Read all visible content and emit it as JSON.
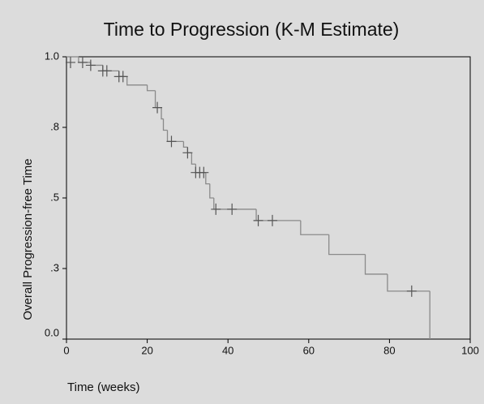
{
  "chart_data": {
    "type": "kaplan-meier",
    "title": "Time to Progression (K-M Estimate)",
    "x_label": "Time (weeks)",
    "y_label": "Overall Progression-free Time",
    "xlim": [
      0,
      100
    ],
    "ylim": [
      0,
      1
    ],
    "xticks": [
      0,
      20,
      40,
      60,
      80,
      100
    ],
    "yticks": [
      {
        "value": 0,
        "label": "0.0"
      },
      {
        "value": 0.25,
        "label": ".3"
      },
      {
        "value": 0.5,
        "label": ".5"
      },
      {
        "value": 0.75,
        "label": ".8"
      },
      {
        "value": 1,
        "label": "1.0"
      }
    ],
    "color": "#8a8a8a",
    "censor_color": "#555555",
    "steps": {
      "x": [
        0,
        3,
        6,
        9,
        13,
        15,
        20,
        22,
        23.5,
        24,
        25,
        29,
        30,
        31,
        32,
        34.5,
        35.5,
        36.5,
        47,
        58,
        65,
        74,
        79.5,
        90
      ],
      "values": [
        1.0,
        0.98,
        0.97,
        0.95,
        0.93,
        0.9,
        0.88,
        0.82,
        0.78,
        0.74,
        0.7,
        0.68,
        0.66,
        0.62,
        0.59,
        0.55,
        0.5,
        0.46,
        0.42,
        0.37,
        0.3,
        0.23,
        0.17,
        0
      ]
    },
    "censored": {
      "x": [
        1,
        4,
        6,
        9,
        10,
        13,
        14,
        22.5,
        26,
        30,
        32,
        33,
        34,
        37,
        41,
        47.5,
        51,
        85.5
      ],
      "values": [
        0.98,
        0.98,
        0.97,
        0.95,
        0.95,
        0.93,
        0.93,
        0.82,
        0.7,
        0.66,
        0.59,
        0.59,
        0.59,
        0.46,
        0.46,
        0.42,
        0.42,
        0.17
      ]
    }
  }
}
